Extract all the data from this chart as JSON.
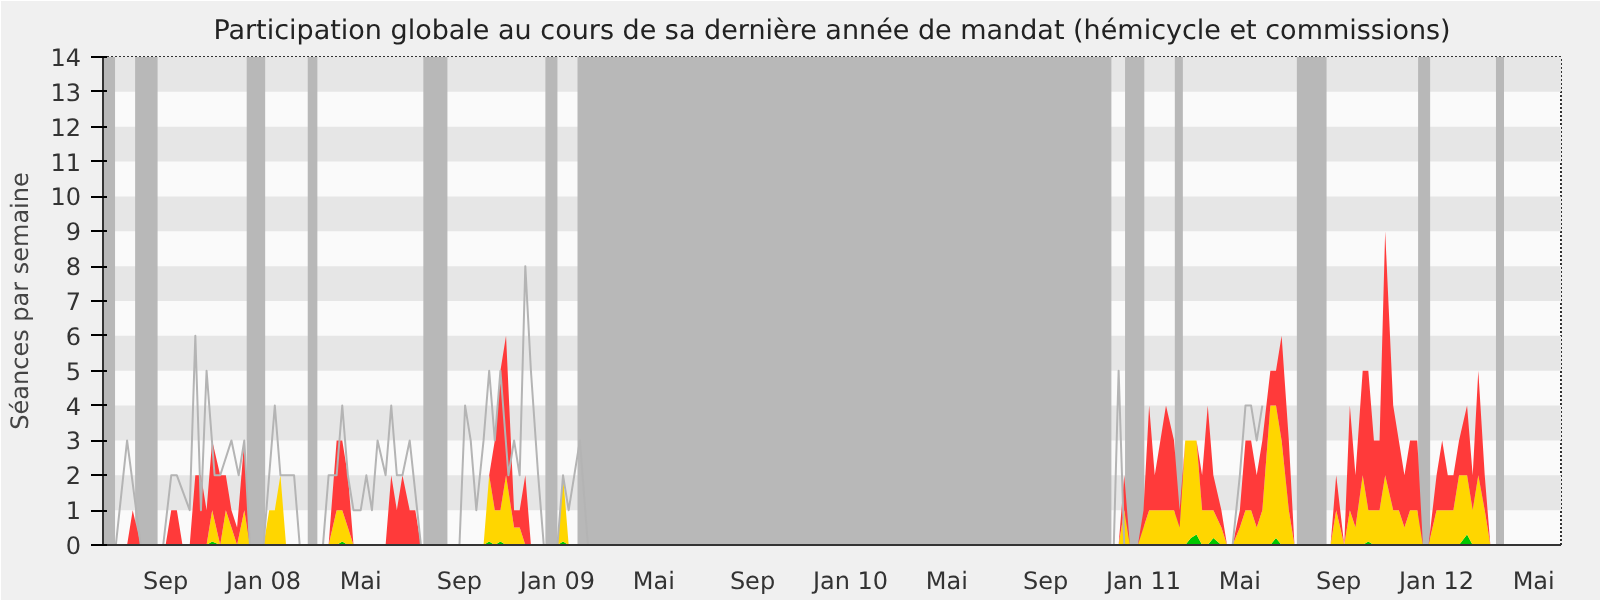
{
  "chart_data": {
    "type": "area",
    "stacked": true,
    "title": "Participation globale au cours de sa dernière année de mandat (hémicycle et commissions)",
    "ylabel": "Séances par semaine",
    "ylim": [
      0,
      14
    ],
    "yticks": [
      0,
      1,
      2,
      3,
      4,
      5,
      6,
      7,
      8,
      9,
      10,
      11,
      12,
      13,
      14
    ],
    "xlim": [
      "2007-06-15",
      "2012-06-04"
    ],
    "xticks": [
      {
        "value": "2007-09-01",
        "label": "Sep"
      },
      {
        "value": "2008-01-01",
        "label": "Jan 08"
      },
      {
        "value": "2008-05-01",
        "label": "Mai"
      },
      {
        "value": "2008-09-01",
        "label": "Sep"
      },
      {
        "value": "2009-01-01",
        "label": "Jan 09"
      },
      {
        "value": "2009-05-01",
        "label": "Mai"
      },
      {
        "value": "2009-09-01",
        "label": "Sep"
      },
      {
        "value": "2010-01-01",
        "label": "Jan 10"
      },
      {
        "value": "2010-05-01",
        "label": "Mai"
      },
      {
        "value": "2010-09-01",
        "label": "Sep"
      },
      {
        "value": "2011-01-01",
        "label": "Jan 11"
      },
      {
        "value": "2011-05-01",
        "label": "Mai"
      },
      {
        "value": "2011-09-01",
        "label": "Sep"
      },
      {
        "value": "2012-01-01",
        "label": "Jan 12"
      },
      {
        "value": "2012-05-01",
        "label": "Mai"
      }
    ],
    "x": [
      "2007-06-15",
      "2007-07-15",
      "2007-07-22",
      "2007-08-01",
      "2007-09-01",
      "2007-09-08",
      "2007-09-15",
      "2007-09-22",
      "2007-10-01",
      "2007-10-08",
      "2007-10-15",
      "2007-10-22",
      "2007-10-29",
      "2007-11-08",
      "2007-11-15",
      "2007-11-22",
      "2007-11-29",
      "2007-12-08",
      "2007-12-15",
      "2008-01-01",
      "2008-01-08",
      "2008-01-15",
      "2008-01-22",
      "2008-01-29",
      "2008-03-22",
      "2008-04-01",
      "2008-04-08",
      "2008-04-15",
      "2008-04-22",
      "2008-06-01",
      "2008-06-08",
      "2008-06-15",
      "2008-06-22",
      "2008-07-01",
      "2008-07-08",
      "2008-07-15",
      "2008-10-01",
      "2008-10-08",
      "2008-10-15",
      "2008-10-22",
      "2008-10-29",
      "2008-11-08",
      "2008-11-15",
      "2008-11-22",
      "2008-11-29",
      "2009-01-01",
      "2009-01-08",
      "2009-01-15",
      "2010-12-01",
      "2010-12-08",
      "2010-12-15",
      "2010-12-25",
      "2011-01-01",
      "2011-01-08",
      "2011-01-15",
      "2011-01-22",
      "2011-01-29",
      "2011-02-08",
      "2011-02-15",
      "2011-02-22",
      "2011-03-01",
      "2011-03-08",
      "2011-03-15",
      "2011-03-22",
      "2011-03-29",
      "2011-04-08",
      "2011-04-15",
      "2011-04-22",
      "2011-05-01",
      "2011-05-08",
      "2011-05-15",
      "2011-05-22",
      "2011-05-29",
      "2011-06-08",
      "2011-06-15",
      "2011-06-22",
      "2011-07-01",
      "2011-07-08",
      "2011-08-22",
      "2011-08-29",
      "2011-09-08",
      "2011-09-15",
      "2011-09-22",
      "2011-10-01",
      "2011-10-08",
      "2011-10-15",
      "2011-10-22",
      "2011-10-29",
      "2011-11-08",
      "2011-11-15",
      "2011-11-22",
      "2011-11-29",
      "2011-12-08",
      "2011-12-15",
      "2011-12-22",
      "2012-01-01",
      "2012-01-08",
      "2012-01-15",
      "2012-01-22",
      "2012-01-29",
      "2012-02-08",
      "2012-02-15",
      "2012-02-22",
      "2012-03-01",
      "2012-03-08",
      "2012-06-04"
    ],
    "series": [
      {
        "color": "#00c800",
        "values": [
          0,
          0,
          0,
          0,
          0,
          0,
          0,
          0,
          0,
          0,
          0,
          0,
          0.1,
          0,
          0,
          0,
          0,
          0,
          0,
          0,
          0,
          0,
          0,
          0,
          0,
          0,
          0.1,
          0,
          0,
          0,
          0,
          0,
          0,
          0,
          0,
          0,
          0,
          0.1,
          0,
          0.1,
          0,
          0,
          0,
          0,
          0,
          0,
          0.1,
          0,
          0,
          0,
          0,
          0,
          0,
          0,
          0,
          0,
          0,
          0,
          0,
          0,
          0.2,
          0.3,
          0,
          0,
          0.2,
          0,
          0,
          0,
          0,
          0,
          0,
          0,
          0,
          0,
          0.2,
          0,
          0,
          0,
          0,
          0,
          0,
          0,
          0,
          0,
          0.1,
          0,
          0,
          0,
          0,
          0,
          0,
          0,
          0,
          0,
          0,
          0,
          0,
          0,
          0,
          0,
          0.3,
          0,
          0,
          0,
          0,
          0
        ]
      },
      {
        "color": "#ffd600",
        "values": [
          0,
          0,
          0,
          0,
          0,
          0,
          0,
          0,
          0,
          0,
          0,
          0,
          0.9,
          0,
          1,
          0.5,
          0,
          1,
          0,
          0,
          1,
          1,
          2,
          0,
          0,
          1,
          0.9,
          0.5,
          0,
          0,
          0,
          0,
          0,
          0,
          0,
          0,
          0,
          1.9,
          1,
          0.9,
          2,
          0.5,
          0.5,
          0,
          0,
          0,
          1.9,
          0,
          0,
          1,
          0,
          0,
          0.5,
          1,
          1,
          1,
          1,
          1,
          0.5,
          3,
          2.8,
          2.7,
          1,
          1,
          0.8,
          0.5,
          0,
          0,
          0.5,
          1,
          1,
          0.5,
          1,
          4,
          3.8,
          3,
          1,
          0,
          0,
          1,
          0,
          1,
          0.5,
          2,
          0.9,
          1,
          1,
          2,
          1,
          1,
          0.5,
          1,
          1,
          0,
          0,
          1,
          1,
          1,
          1,
          2,
          1.7,
          1,
          2,
          1,
          0,
          0
        ]
      },
      {
        "color": "#ff3a3a",
        "values": [
          0,
          0,
          1,
          0,
          0,
          1,
          1,
          0,
          0,
          2,
          2,
          1,
          2,
          2,
          1,
          0.5,
          0.5,
          2,
          0,
          0,
          0,
          0,
          0,
          0,
          0,
          2,
          2,
          1.5,
          0,
          0,
          2,
          1,
          2,
          1,
          1,
          0,
          0,
          0,
          2,
          4,
          4,
          0.5,
          0.5,
          2,
          0,
          0,
          0,
          0,
          0,
          1,
          0,
          0,
          0.5,
          3,
          1,
          2,
          3,
          2,
          0.5,
          0,
          0,
          0,
          1,
          3,
          1,
          0.5,
          0,
          0,
          0.5,
          2,
          2,
          1.5,
          2,
          1,
          1,
          3,
          2,
          0,
          0,
          1,
          0,
          3,
          1.5,
          3,
          4,
          2,
          2,
          7,
          3,
          2,
          1.5,
          2,
          2,
          0,
          0,
          1,
          2,
          1,
          1,
          1,
          2,
          1,
          3,
          1,
          0,
          0
        ]
      },
      {
        "type": "line",
        "color": "#b4b4b4",
        "x": [
          "2007-07-01",
          "2007-07-15",
          "2007-08-01",
          "2007-08-29",
          "2007-09-08",
          "2007-09-15",
          "2007-10-01",
          "2007-10-08",
          "2007-10-15",
          "2007-10-22",
          "2007-11-01",
          "2007-11-08",
          "2007-11-22",
          "2007-12-01",
          "2007-12-08",
          "2007-12-15",
          "2008-01-01",
          "2008-01-15",
          "2008-01-22",
          "2008-02-01",
          "2008-02-08",
          "2008-02-15",
          "2008-03-15",
          "2008-03-22",
          "2008-04-01",
          "2008-04-08",
          "2008-04-15",
          "2008-04-22",
          "2008-05-01",
          "2008-05-08",
          "2008-05-15",
          "2008-05-22",
          "2008-06-01",
          "2008-06-08",
          "2008-06-15",
          "2008-06-22",
          "2008-07-01",
          "2008-07-15",
          "2008-09-01",
          "2008-09-08",
          "2008-09-15",
          "2008-09-22",
          "2008-10-01",
          "2008-10-08",
          "2008-10-15",
          "2008-10-22",
          "2008-11-01",
          "2008-11-08",
          "2008-11-15",
          "2008-11-22",
          "2008-11-29",
          "2008-12-08",
          "2008-12-15",
          "2009-01-01",
          "2009-01-08",
          "2009-01-15",
          "2009-01-22",
          "2009-01-29",
          "2009-02-08",
          "2010-11-25",
          "2010-12-01",
          "2010-12-08",
          "2011-04-22",
          "2011-05-01",
          "2011-05-08",
          "2011-05-15",
          "2011-05-22",
          "2011-05-29"
        ],
        "values": [
          0,
          3,
          0,
          0,
          2,
          2,
          1,
          6,
          1,
          5,
          2,
          2,
          3,
          2,
          3,
          0,
          0,
          4,
          2,
          2,
          2,
          0,
          0,
          2,
          2,
          4,
          2,
          1,
          1,
          2,
          1,
          3,
          2,
          4,
          2,
          2,
          3,
          0,
          0,
          4,
          3,
          1,
          3,
          5,
          3,
          5,
          2,
          3,
          2,
          8,
          5,
          2,
          0,
          0,
          2,
          1,
          2,
          3,
          0,
          0,
          5,
          0,
          0,
          2,
          4,
          4,
          3,
          4
        ]
      }
    ],
    "bands": [
      {
        "axis": "x",
        "from": "2007-06-15",
        "to": "2007-06-30",
        "color": "#b8b8b8"
      },
      {
        "axis": "x",
        "from": "2007-07-25",
        "to": "2007-08-22",
        "color": "#b8b8b8"
      },
      {
        "axis": "x",
        "from": "2007-12-11",
        "to": "2008-01-03",
        "color": "#b8b8b8"
      },
      {
        "axis": "x",
        "from": "2008-02-25",
        "to": "2008-03-08",
        "color": "#b8b8b8"
      },
      {
        "axis": "x",
        "from": "2008-07-18",
        "to": "2008-08-17",
        "color": "#b8b8b8"
      },
      {
        "axis": "x",
        "from": "2008-12-17",
        "to": "2009-01-01",
        "color": "#b8b8b8"
      },
      {
        "axis": "x",
        "from": "2009-01-26",
        "to": "2010-11-22",
        "color": "#b8b8b8"
      },
      {
        "axis": "x",
        "from": "2010-12-09",
        "to": "2011-01-02",
        "color": "#b8b8b8"
      },
      {
        "axis": "x",
        "from": "2011-02-09",
        "to": "2011-02-19",
        "color": "#b8b8b8"
      },
      {
        "axis": "x",
        "from": "2011-07-11",
        "to": "2011-08-17",
        "color": "#b8b8b8"
      },
      {
        "axis": "x",
        "from": "2011-12-09",
        "to": "2011-12-24",
        "color": "#b8b8b8"
      },
      {
        "axis": "x",
        "from": "2012-03-15",
        "to": "2012-03-25",
        "color": "#b8b8b8"
      }
    ]
  }
}
